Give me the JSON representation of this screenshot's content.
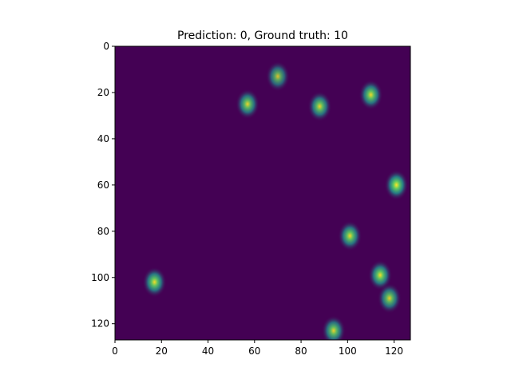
{
  "chart_data": {
    "type": "heatmap",
    "title": "Prediction: 0, Ground truth: 10",
    "xlabel": "",
    "ylabel": "",
    "xlim": [
      0,
      127
    ],
    "ylim": [
      127,
      0
    ],
    "x_ticks": [
      0,
      20,
      40,
      60,
      80,
      100,
      120
    ],
    "y_ticks": [
      0,
      20,
      40,
      60,
      80,
      100,
      120
    ],
    "x_tick_labels": [
      "0",
      "20",
      "40",
      "60",
      "80",
      "100",
      "120"
    ],
    "y_tick_labels": [
      "0",
      "20",
      "40",
      "60",
      "80",
      "100",
      "120"
    ],
    "colormap": "viridis",
    "background_value": 0,
    "grid": false,
    "colors": {
      "background": "#440154",
      "spot_low": "#21908d",
      "spot_mid": "#5ec962",
      "spot_high": "#fde725"
    },
    "spots": [
      {
        "x": 70,
        "y": 13,
        "intensity": 0.6
      },
      {
        "x": 57,
        "y": 25,
        "intensity": 0.8
      },
      {
        "x": 88,
        "y": 26,
        "intensity": 0.8
      },
      {
        "x": 110,
        "y": 21,
        "intensity": 0.85
      },
      {
        "x": 121,
        "y": 60,
        "intensity": 1.0
      },
      {
        "x": 101,
        "y": 82,
        "intensity": 0.85
      },
      {
        "x": 17,
        "y": 102,
        "intensity": 0.9
      },
      {
        "x": 114,
        "y": 99,
        "intensity": 0.9
      },
      {
        "x": 118,
        "y": 109,
        "intensity": 0.75
      },
      {
        "x": 94,
        "y": 123,
        "intensity": 0.8
      }
    ]
  }
}
